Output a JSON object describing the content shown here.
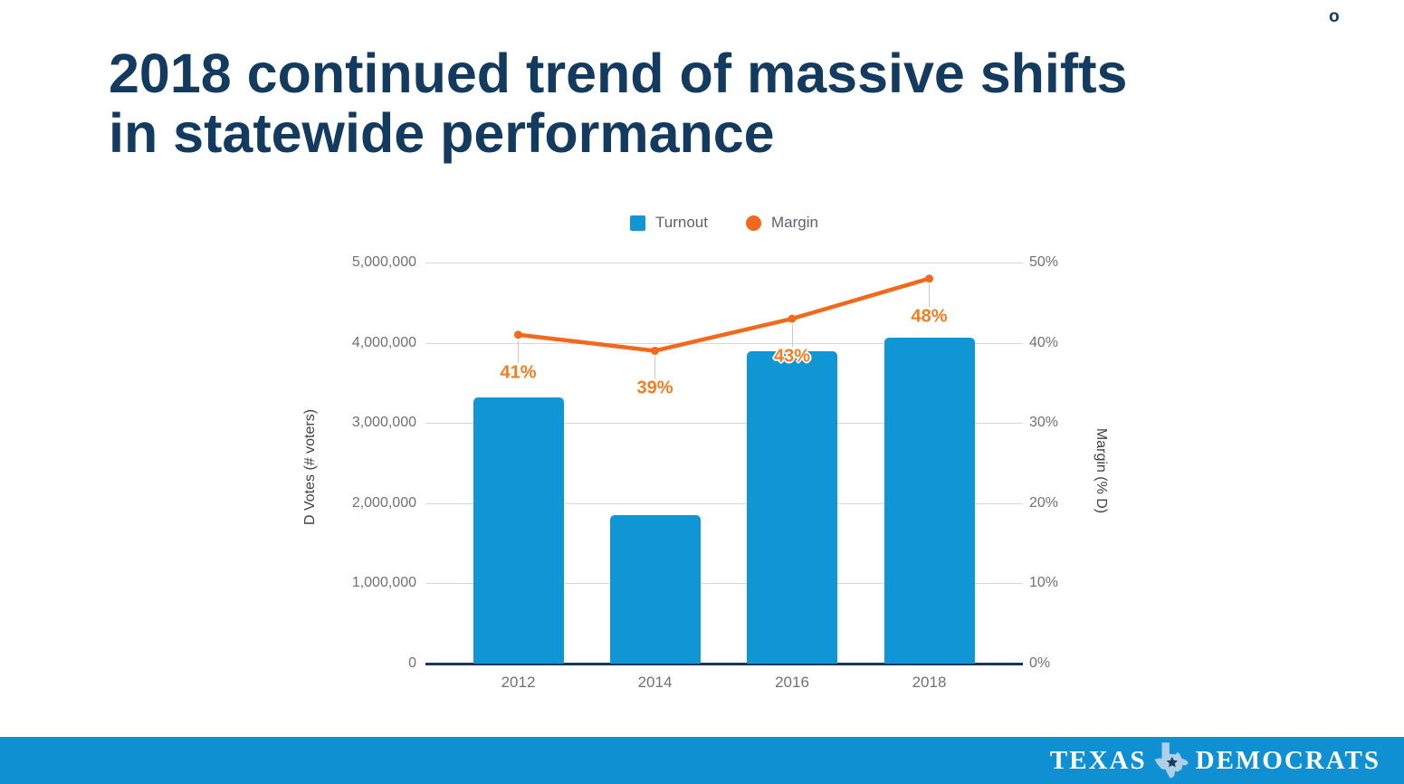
{
  "slide": {
    "title_line1": "2018 continued trend of massive shifts",
    "title_line2": "in statewide performance",
    "corner_mark": "o"
  },
  "footer": {
    "brand_left": "TEXAS",
    "brand_right": "DEMOCRATS",
    "icon": "texas-state-with-star-icon"
  },
  "colors": {
    "title_navy": "#133a5f",
    "bar_blue": "#1095d5",
    "line_orange": "#f2691c",
    "data_label_orange": "#f57c1f",
    "footer_blue": "#0f90d3",
    "gridline_gray": "#d8d8d8",
    "axis_line_navy": "#16365c",
    "tick_gray": "#717171",
    "legend_text_gray": "#5f6368"
  },
  "chart_data": {
    "type": "combo_bar_line",
    "categories": [
      "2012",
      "2014",
      "2016",
      "2018"
    ],
    "series": [
      {
        "name": "Turnout",
        "type": "bar",
        "axis": "left",
        "values": [
          3320000,
          1850000,
          3890000,
          4060000
        ]
      },
      {
        "name": "Margin",
        "type": "line",
        "axis": "right",
        "values": [
          41,
          39,
          43,
          48
        ],
        "point_labels": [
          "41%",
          "39%",
          "43%",
          "48%"
        ]
      }
    ],
    "left_axis": {
      "title": "D Votes (# voters)",
      "ticks": [
        "0",
        "1,000,000",
        "2,000,000",
        "3,000,000",
        "4,000,000",
        "5,000,000"
      ],
      "min": 0,
      "max": 5000000
    },
    "right_axis": {
      "title": "Margin (% D)",
      "ticks": [
        "0%",
        "10%",
        "20%",
        "30%",
        "40%",
        "50%"
      ],
      "min": 0,
      "max": 50
    },
    "legend": [
      {
        "label": "Turnout",
        "swatch": "square"
      },
      {
        "label": "Margin",
        "swatch": "circle"
      }
    ],
    "legend_position": "top",
    "grid": true
  }
}
